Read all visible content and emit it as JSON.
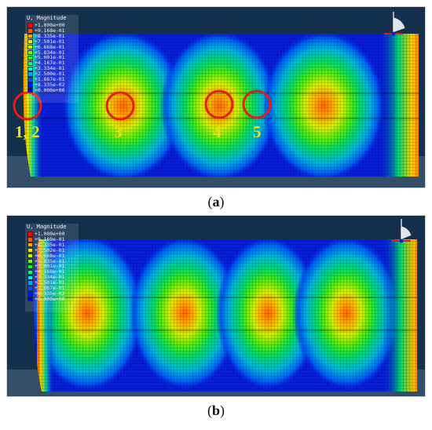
{
  "colors": {
    "background_dark": "#15304a",
    "mesh_base": "#0a1fd2",
    "circle": "#e41c1c",
    "marker_label": "#e7e01a"
  },
  "legend": {
    "title": "U, Magnitude",
    "swatch_colors": [
      "#ff0000",
      "#ff5a00",
      "#ffa800",
      "#ffe600",
      "#c8ff00",
      "#6aff00",
      "#00ff2e",
      "#00ff9a",
      "#00f0e6",
      "#00a4ff",
      "#0050ff",
      "#0014ff",
      "#0000c8"
    ],
    "panel_a_values": [
      "+1.000e+00",
      "+9.168e-01",
      "+8.335e-01",
      "+7.501e-01",
      "+6.668e-01",
      "+5.834e-01",
      "+5.001e-01",
      "+4.167e-01",
      "+3.334e-01",
      "+2.500e-01",
      "+1.667e-01",
      "+8.335e-02",
      "+0.000e+00"
    ],
    "panel_b_values": [
      "+1.000e+00",
      "+9.169e-01",
      "+8.335e-01",
      "+7.502e-01",
      "+6.668e-01",
      "+5.835e-01",
      "+5.001e-01",
      "+4.168e-01",
      "+3.334e-01",
      "+2.501e-01",
      "+1.667e-01",
      "+8.335e-02",
      "+0.000e+00"
    ]
  },
  "panel_a": {
    "caption_letter": "a",
    "markers": [
      "1, 2",
      "3",
      "4",
      "5"
    ]
  },
  "panel_b": {
    "caption_letter": "b"
  }
}
